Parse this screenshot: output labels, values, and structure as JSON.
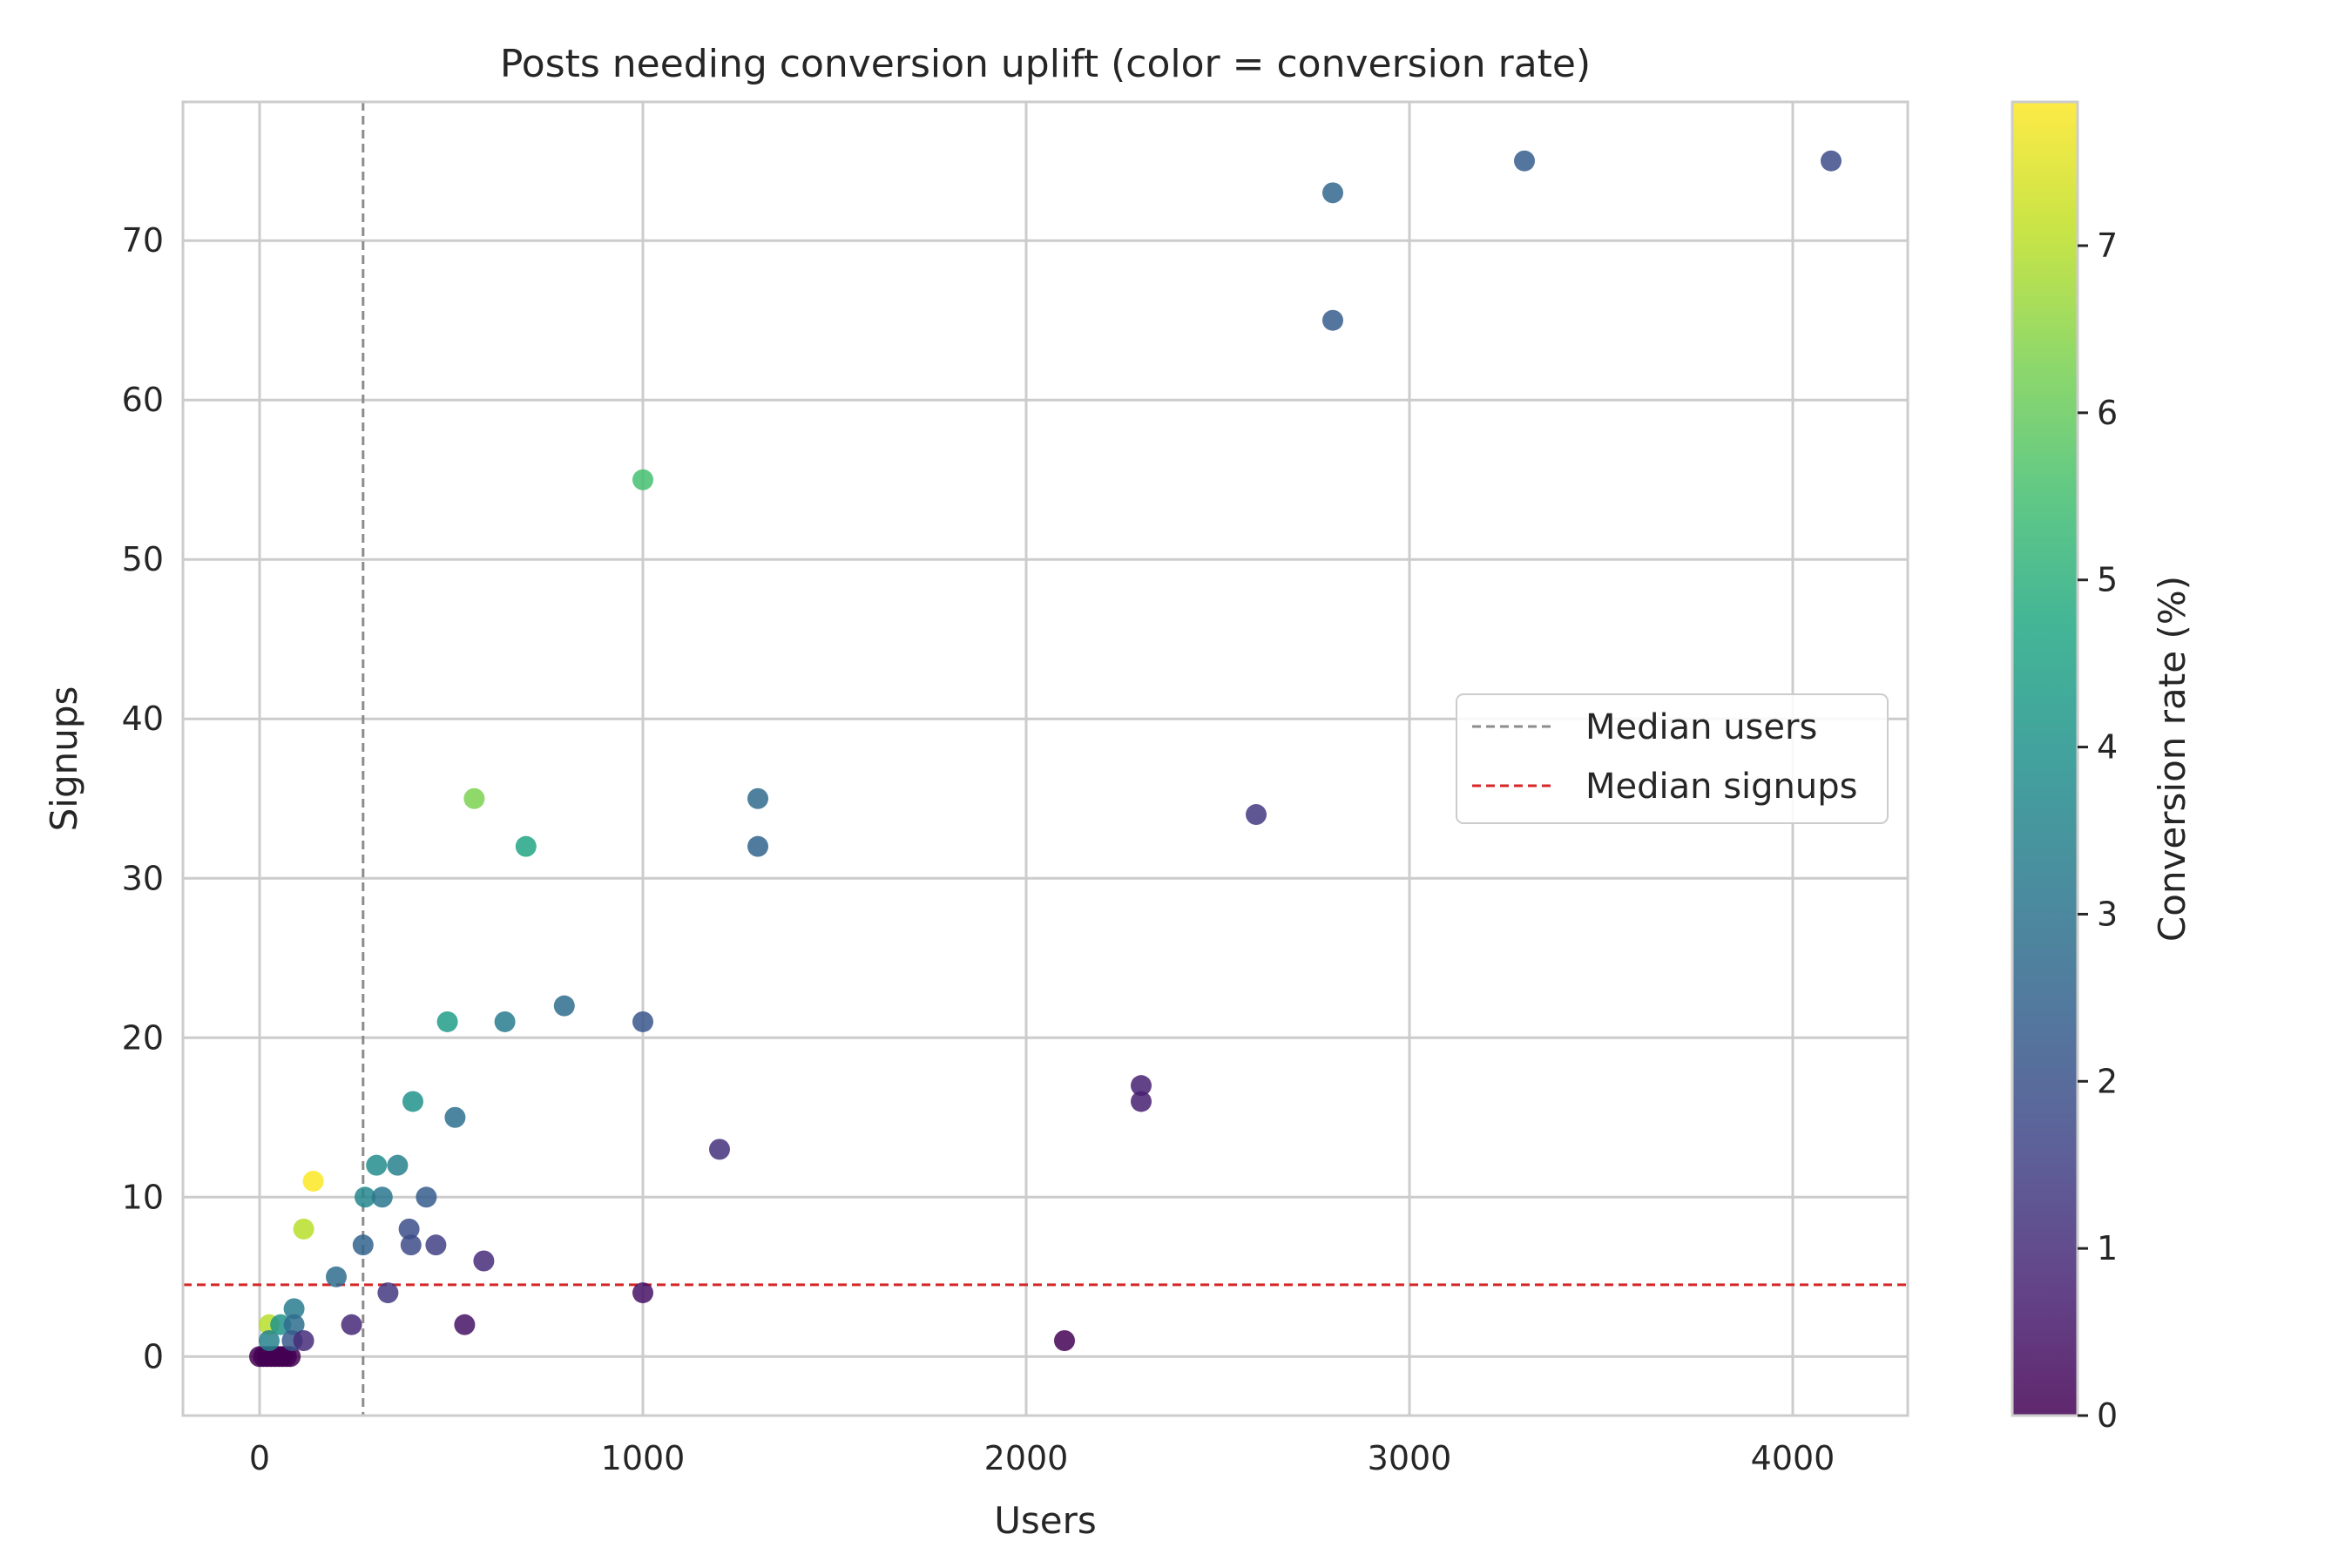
{
  "chart_data": {
    "type": "scatter",
    "title": "Posts needing conversion uplift (color = conversion rate)",
    "xlabel": "Users",
    "ylabel": "Signups",
    "xlim": [
      -200,
      4300
    ],
    "ylim": [
      -3.7,
      78.7
    ],
    "xticks": [
      0,
      1000,
      2000,
      3000,
      4000
    ],
    "xtick_labels": [
      "0",
      "1000",
      "2000",
      "3000",
      "4000"
    ],
    "yticks": [
      0,
      10,
      20,
      30,
      40,
      50,
      60,
      70
    ],
    "ytick_labels": [
      "0",
      "10",
      "20",
      "30",
      "40",
      "50",
      "60",
      "70"
    ],
    "grid": true,
    "colormap": "viridis",
    "colorbar": {
      "label": "Conversion rate (%)",
      "min": 0,
      "max": 7.86,
      "ticks": [
        0,
        1,
        2,
        3,
        4,
        5,
        6,
        7
      ],
      "tick_labels": [
        "0",
        "1",
        "2",
        "3",
        "4",
        "5",
        "6",
        "7"
      ]
    },
    "reference_lines": [
      {
        "name": "Median users",
        "orientation": "vertical",
        "value": 270,
        "color": "#8c8c8c",
        "style": "dashed"
      },
      {
        "name": "Median signups",
        "orientation": "horizontal",
        "value": 4.5,
        "color": "#d62728",
        "style": "dashed"
      }
    ],
    "legend": {
      "position": "center-right",
      "entries": [
        "Median users",
        "Median signups"
      ]
    },
    "points": [
      {
        "x": 0,
        "y": 0,
        "rate": 0
      },
      {
        "x": 10,
        "y": 0,
        "rate": 0
      },
      {
        "x": 20,
        "y": 0,
        "rate": 0
      },
      {
        "x": 30,
        "y": 0,
        "rate": 0
      },
      {
        "x": 40,
        "y": 0,
        "rate": 0
      },
      {
        "x": 50,
        "y": 0,
        "rate": 0
      },
      {
        "x": 60,
        "y": 0,
        "rate": 0
      },
      {
        "x": 70,
        "y": 0,
        "rate": 0
      },
      {
        "x": 80,
        "y": 0,
        "rate": 0
      },
      {
        "x": 25,
        "y": 2,
        "rate": 7.0
      },
      {
        "x": 25,
        "y": 1,
        "rate": 3.5
      },
      {
        "x": 55,
        "y": 2,
        "rate": 4.0
      },
      {
        "x": 90,
        "y": 3,
        "rate": 3.3
      },
      {
        "x": 90,
        "y": 2,
        "rate": 2.8
      },
      {
        "x": 85,
        "y": 1,
        "rate": 2.2
      },
      {
        "x": 115,
        "y": 1,
        "rate": 1.0
      },
      {
        "x": 115,
        "y": 8,
        "rate": 7.0
      },
      {
        "x": 140,
        "y": 11,
        "rate": 7.86
      },
      {
        "x": 200,
        "y": 5,
        "rate": 2.8
      },
      {
        "x": 240,
        "y": 2,
        "rate": 0.9
      },
      {
        "x": 270,
        "y": 7,
        "rate": 2.5
      },
      {
        "x": 275,
        "y": 10,
        "rate": 3.6
      },
      {
        "x": 305,
        "y": 12,
        "rate": 3.8
      },
      {
        "x": 320,
        "y": 10,
        "rate": 3.1
      },
      {
        "x": 335,
        "y": 4,
        "rate": 1.3
      },
      {
        "x": 360,
        "y": 12,
        "rate": 3.4
      },
      {
        "x": 390,
        "y": 8,
        "rate": 1.9
      },
      {
        "x": 395,
        "y": 7,
        "rate": 1.8
      },
      {
        "x": 400,
        "y": 16,
        "rate": 4.0
      },
      {
        "x": 435,
        "y": 10,
        "rate": 2.3
      },
      {
        "x": 460,
        "y": 7,
        "rate": 1.5
      },
      {
        "x": 490,
        "y": 21,
        "rate": 4.3
      },
      {
        "x": 510,
        "y": 15,
        "rate": 2.9
      },
      {
        "x": 535,
        "y": 2,
        "rate": 0.4
      },
      {
        "x": 560,
        "y": 35,
        "rate": 6.3
      },
      {
        "x": 585,
        "y": 6,
        "rate": 1.0
      },
      {
        "x": 640,
        "y": 21,
        "rate": 3.3
      },
      {
        "x": 695,
        "y": 32,
        "rate": 4.6
      },
      {
        "x": 795,
        "y": 22,
        "rate": 2.8
      },
      {
        "x": 1000,
        "y": 55,
        "rate": 5.5
      },
      {
        "x": 1000,
        "y": 21,
        "rate": 2.1
      },
      {
        "x": 1000,
        "y": 4,
        "rate": 0.4
      },
      {
        "x": 1200,
        "y": 13,
        "rate": 1.1
      },
      {
        "x": 1300,
        "y": 35,
        "rate": 2.7
      },
      {
        "x": 1300,
        "y": 32,
        "rate": 2.5
      },
      {
        "x": 2100,
        "y": 1,
        "rate": 0.05
      },
      {
        "x": 2300,
        "y": 17,
        "rate": 0.74
      },
      {
        "x": 2300,
        "y": 16,
        "rate": 0.7
      },
      {
        "x": 2600,
        "y": 34,
        "rate": 1.3
      },
      {
        "x": 2800,
        "y": 73,
        "rate": 2.6
      },
      {
        "x": 2800,
        "y": 65,
        "rate": 2.3
      },
      {
        "x": 3300,
        "y": 75,
        "rate": 2.3
      },
      {
        "x": 4100,
        "y": 75,
        "rate": 1.8
      }
    ]
  }
}
